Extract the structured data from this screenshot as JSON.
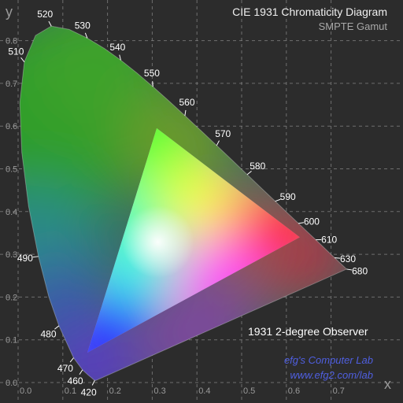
{
  "title": "CIE 1931 Chromaticity Diagram",
  "subtitle": "SMPTE Gamut",
  "observer_note": "1931 2-degree Observer",
  "credit": {
    "name": "efg's Computer Lab",
    "url": "www.efg2.com/lab"
  },
  "colors": {
    "background": "#2c2c2c",
    "grid": "#8a8a8a",
    "tick_text": "#9a9a9a",
    "label_text": "#ffffff",
    "credit": "#4f5fe0"
  },
  "chart_data": {
    "type": "scatter",
    "xlabel": "x",
    "ylabel": "y",
    "xlim": [
      0,
      0.8
    ],
    "ylim": [
      0,
      0.85
    ],
    "grid": true,
    "x_ticks": [
      "0.0",
      "0.1",
      "0.2",
      "0.3",
      "0.4",
      "0.5",
      "0.6",
      "0.7"
    ],
    "y_ticks": [
      "0.0",
      "0.1",
      "0.2",
      "0.3",
      "0.4",
      "0.5",
      "0.6",
      "0.7",
      "0.8"
    ],
    "spectral_locus": [
      [
        0.1741,
        0.005
      ],
      [
        0.1738,
        0.0049
      ],
      [
        0.1714,
        0.0051
      ],
      [
        0.1689,
        0.0069
      ],
      [
        0.1644,
        0.0109
      ],
      [
        0.1566,
        0.0177
      ],
      [
        0.144,
        0.0297
      ],
      [
        0.1241,
        0.0578
      ],
      [
        0.0913,
        0.1327
      ],
      [
        0.0687,
        0.2007
      ],
      [
        0.0454,
        0.295
      ],
      [
        0.0235,
        0.4127
      ],
      [
        0.0082,
        0.5384
      ],
      [
        0.0039,
        0.6548
      ],
      [
        0.0139,
        0.7502
      ],
      [
        0.0389,
        0.812
      ],
      [
        0.0743,
        0.8338
      ],
      [
        0.1142,
        0.8262
      ],
      [
        0.1547,
        0.8059
      ],
      [
        0.1929,
        0.7816
      ],
      [
        0.2296,
        0.7543
      ],
      [
        0.2658,
        0.7243
      ],
      [
        0.3016,
        0.6923
      ],
      [
        0.3373,
        0.6589
      ],
      [
        0.3731,
        0.6245
      ],
      [
        0.4087,
        0.5896
      ],
      [
        0.4441,
        0.5547
      ],
      [
        0.4788,
        0.5202
      ],
      [
        0.5125,
        0.4866
      ],
      [
        0.5448,
        0.4544
      ],
      [
        0.5752,
        0.4242
      ],
      [
        0.6029,
        0.3965
      ],
      [
        0.627,
        0.3725
      ],
      [
        0.6482,
        0.3514
      ],
      [
        0.6658,
        0.334
      ],
      [
        0.6801,
        0.3197
      ],
      [
        0.6915,
        0.3083
      ],
      [
        0.7006,
        0.2993
      ],
      [
        0.7079,
        0.292
      ],
      [
        0.714,
        0.2859
      ],
      [
        0.7347,
        0.2653
      ]
    ],
    "wavelength_labels": [
      {
        "nm": "420",
        "x": 0.1714,
        "y": 0.0051
      },
      {
        "nm": "460",
        "x": 0.144,
        "y": 0.0297
      },
      {
        "nm": "470",
        "x": 0.1241,
        "y": 0.0578
      },
      {
        "nm": "480",
        "x": 0.0913,
        "y": 0.1327
      },
      {
        "nm": "490",
        "x": 0.0454,
        "y": 0.295
      },
      {
        "nm": "510",
        "x": 0.0139,
        "y": 0.7502
      },
      {
        "nm": "520",
        "x": 0.0743,
        "y": 0.8338
      },
      {
        "nm": "530",
        "x": 0.1547,
        "y": 0.8059
      },
      {
        "nm": "540",
        "x": 0.2296,
        "y": 0.7543
      },
      {
        "nm": "550",
        "x": 0.3016,
        "y": 0.6923
      },
      {
        "nm": "560",
        "x": 0.3731,
        "y": 0.6245
      },
      {
        "nm": "570",
        "x": 0.4441,
        "y": 0.5547
      },
      {
        "nm": "580",
        "x": 0.5125,
        "y": 0.4866
      },
      {
        "nm": "590",
        "x": 0.5752,
        "y": 0.4242
      },
      {
        "nm": "600",
        "x": 0.627,
        "y": 0.3725
      },
      {
        "nm": "610",
        "x": 0.6658,
        "y": 0.334
      },
      {
        "nm": "630",
        "x": 0.7079,
        "y": 0.292
      },
      {
        "nm": "680",
        "x": 0.7347,
        "y": 0.2653
      }
    ],
    "gamut_triangle": [
      {
        "name": "red",
        "x": 0.63,
        "y": 0.34
      },
      {
        "name": "green",
        "x": 0.31,
        "y": 0.595
      },
      {
        "name": "blue",
        "x": 0.155,
        "y": 0.07
      }
    ]
  }
}
